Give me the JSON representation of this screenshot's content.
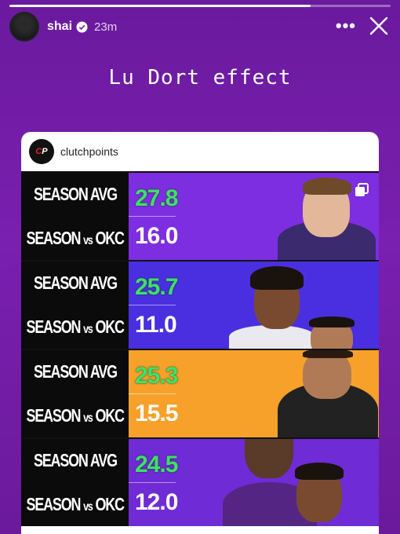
{
  "story": {
    "progress": 0.79,
    "username": "shai",
    "time": "23m",
    "caption": "Lu Dort effect"
  },
  "post": {
    "account": "clutchpoints",
    "logo_text": "CP"
  },
  "rows": [
    {
      "label_top": "SEASON AVG",
      "label_bot_a": "SEASON",
      "label_bot_b": "vs",
      "label_bot_c": "OKC",
      "season_avg": "27.8",
      "vs_okc": "16.0",
      "bg": "#7d2ee0"
    },
    {
      "label_top": "SEASON AVG",
      "label_bot_a": "SEASON",
      "label_bot_b": "vs",
      "label_bot_c": "OKC",
      "season_avg": "25.7",
      "vs_okc": "11.0",
      "bg": "#4a2fe0"
    },
    {
      "label_top": "SEASON AVG",
      "label_bot_a": "SEASON",
      "label_bot_b": "vs",
      "label_bot_c": "OKC",
      "season_avg": "25.3",
      "vs_okc": "15.5",
      "bg": "#f7a12a"
    },
    {
      "label_top": "SEASON AVG",
      "label_bot_a": "SEASON",
      "label_bot_b": "vs",
      "label_bot_c": "OKC",
      "season_avg": "24.5",
      "vs_okc": "12.0",
      "bg": "#6f2bd6"
    }
  ],
  "icons": [
    "verified-icon",
    "more-icon",
    "close-icon",
    "copy-icon"
  ]
}
